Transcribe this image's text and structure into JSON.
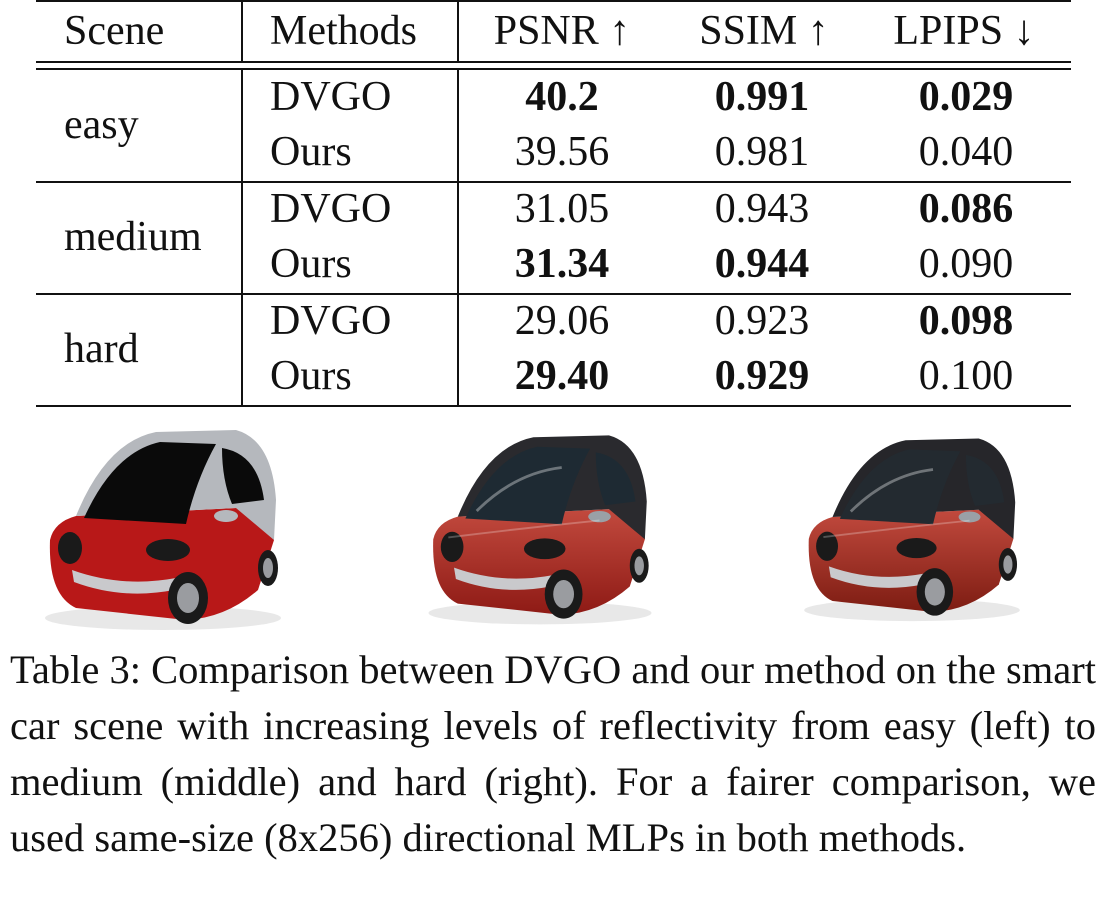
{
  "table": {
    "headers": [
      "Scene",
      "Methods",
      "PSNR ↑",
      "SSIM ↑",
      "LPIPS ↓"
    ],
    "groups": [
      {
        "scene": "easy",
        "rows": [
          {
            "method": "DVGO",
            "psnr": "40.2",
            "ssim": "0.991",
            "lpips": "0.029",
            "bold": [
              true,
              true,
              true
            ]
          },
          {
            "method": "Ours",
            "psnr": "39.56",
            "ssim": "0.981",
            "lpips": "0.040",
            "bold": [
              false,
              false,
              false
            ]
          }
        ]
      },
      {
        "scene": "medium",
        "rows": [
          {
            "method": "DVGO",
            "psnr": "31.05",
            "ssim": "0.943",
            "lpips": "0.086",
            "bold": [
              false,
              false,
              true
            ]
          },
          {
            "method": "Ours",
            "psnr": "31.34",
            "ssim": "0.944",
            "lpips": "0.090",
            "bold": [
              true,
              true,
              false
            ]
          }
        ]
      },
      {
        "scene": "hard",
        "rows": [
          {
            "method": "DVGO",
            "psnr": "29.06",
            "ssim": "0.923",
            "lpips": "0.098",
            "bold": [
              false,
              false,
              true
            ]
          },
          {
            "method": "Ours",
            "psnr": "29.40",
            "ssim": "0.929",
            "lpips": "0.100",
            "bold": [
              true,
              true,
              false
            ]
          }
        ]
      }
    ]
  },
  "figures": [
    {
      "style": "flat",
      "body_color": "#b81818",
      "glass_color": "#0a0a0a",
      "trim_color": "#b5b8bd"
    },
    {
      "style": "glossy",
      "body_color": "#8e1a15",
      "glass_color": "#1e2a33",
      "trim_color": "#2a2a2e"
    },
    {
      "style": "metallic",
      "body_color": "#7d1c12",
      "glass_color": "#232a30",
      "trim_color": "#26262a"
    }
  ],
  "caption": "Table 3: Comparison between DVGO and our method on the smart car scene with increasing levels of reflectivity from easy (left) to medium (middle) and hard (right). For a fairer comparison, we used same-size (8x256) directional MLPs in both methods."
}
